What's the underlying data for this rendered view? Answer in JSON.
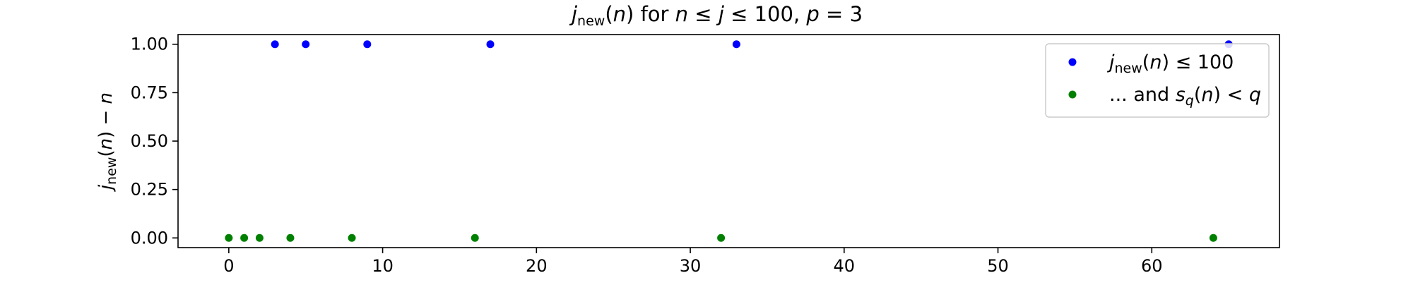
{
  "chart_data": {
    "type": "scatter",
    "title": {
      "j": "j",
      "sub": "new",
      "rest1": "(",
      "n1": "n",
      "rest2": ") for ",
      "n2": "n",
      "le1": " ≤ ",
      "j2": "j",
      "le2": " ≤ 100, ",
      "p": "p",
      "eq": " = 3"
    },
    "ylabel": {
      "j": "j",
      "sub": "new",
      "rest1": "(",
      "n": "n",
      "rest2": ") − ",
      "n2": "n"
    },
    "xlabel": "",
    "xlim": [
      -3.3,
      68.3
    ],
    "ylim": [
      -0.05,
      1.05
    ],
    "xticks": [
      0,
      10,
      20,
      30,
      40,
      50,
      60
    ],
    "yticks": [
      0.0,
      0.25,
      0.5,
      0.75,
      1.0
    ],
    "ytick_labels": [
      "0.00",
      "0.25",
      "0.50",
      "0.75",
      "1.00"
    ],
    "xtick_labels": [
      "0",
      "10",
      "20",
      "30",
      "40",
      "50",
      "60"
    ],
    "grid": false,
    "legend_position": "top-right",
    "series": [
      {
        "legend": {
          "j": "j",
          "sub": "new",
          "rest1": "(",
          "n": "n",
          "rest2": ") ≤ 100"
        },
        "color": "#0000ff",
        "x": [
          3,
          5,
          9,
          17,
          33,
          65
        ],
        "y": [
          1,
          1,
          1,
          1,
          1,
          1
        ]
      },
      {
        "legend": {
          "pre": "... and ",
          "s": "s",
          "sub": "q",
          "rest1": "(",
          "n": "n",
          "rest2": ") < ",
          "q": "q"
        },
        "color": "#008000",
        "x": [
          0,
          1,
          2,
          4,
          8,
          16,
          32,
          64
        ],
        "y": [
          0,
          0,
          0,
          0,
          0,
          0,
          0,
          0
        ]
      }
    ]
  }
}
